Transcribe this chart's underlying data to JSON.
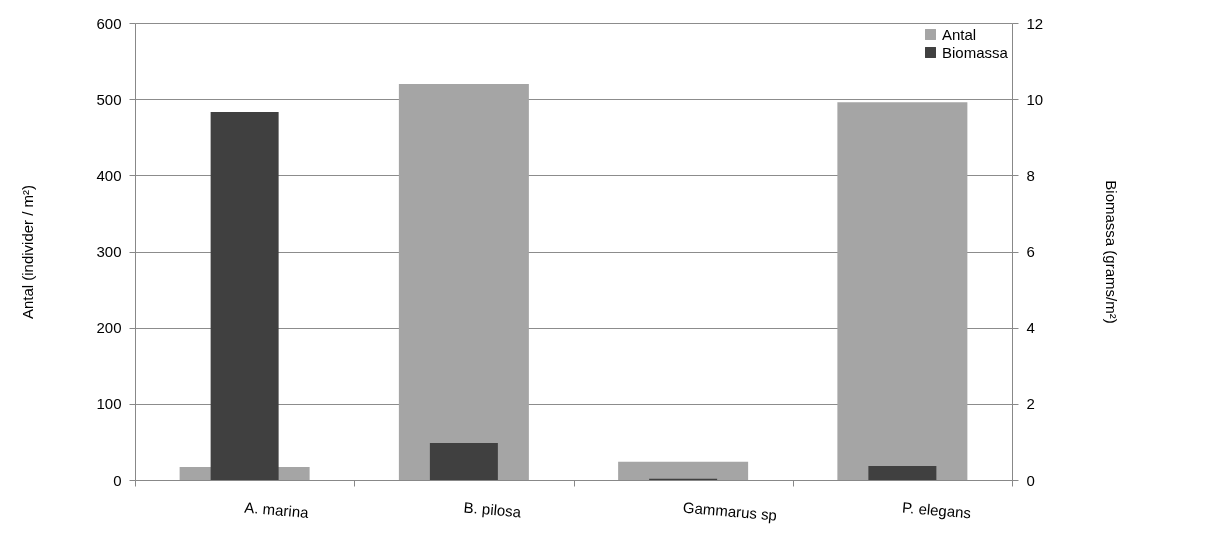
{
  "chart_data": {
    "type": "bar",
    "categories": [
      "A. marina",
      "B. pilosa",
      "Gammarus sp",
      "P. elegans"
    ],
    "series": [
      {
        "name": "Antal",
        "color": "#a5a5a5",
        "values": [
          17,
          520,
          24,
          496
        ]
      },
      {
        "name": "Biomassa",
        "color": "#404040",
        "values": [
          9.66,
          0.97,
          0.03,
          0.37
        ],
        "axis": "y2"
      }
    ],
    "ylabel": "Antal (individer / m²)",
    "y2label": "Biomassa (grams/m²)",
    "ylim": [
      0,
      600
    ],
    "yticks": [
      0,
      100,
      200,
      300,
      400,
      500,
      600
    ],
    "y2lim": [
      0,
      12
    ],
    "y2ticks": [
      0,
      2,
      4,
      6,
      8,
      10,
      12
    ],
    "grid": "y",
    "legend": "top right"
  }
}
